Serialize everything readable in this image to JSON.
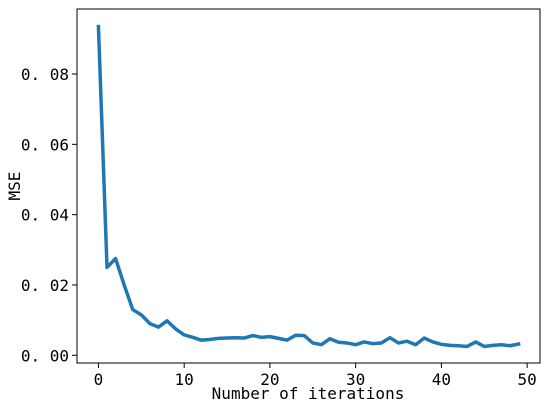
{
  "chart_data": {
    "type": "line",
    "xlabel": "Number of iterations",
    "ylabel": "MSE",
    "xlim": [
      -2.5,
      51.5
    ],
    "ylim": [
      -0.0022,
      0.0985
    ],
    "xticks": [
      0,
      10,
      20,
      30,
      40,
      50
    ],
    "xtick_labels": [
      "0",
      "10",
      "20",
      "30",
      "40",
      "50"
    ],
    "yticks": [
      0.0,
      0.02,
      0.04,
      0.06,
      0.08
    ],
    "ytick_labels": [
      "0. 00",
      "0. 02",
      "0. 04",
      "0. 06",
      "0. 08"
    ],
    "grid": false,
    "series": [
      {
        "color": "#1f77b4",
        "x": [
          0,
          1,
          2,
          3,
          4,
          5,
          6,
          7,
          8,
          9,
          10,
          11,
          12,
          13,
          14,
          15,
          16,
          17,
          18,
          19,
          20,
          21,
          22,
          23,
          24,
          25,
          26,
          27,
          28,
          29,
          30,
          31,
          32,
          33,
          34,
          35,
          36,
          37,
          38,
          39,
          40,
          41,
          42,
          43,
          44,
          45,
          46,
          47,
          48,
          49
        ],
        "y": [
          0.0935,
          0.025,
          0.0275,
          0.02,
          0.013,
          0.0115,
          0.009,
          0.008,
          0.0098,
          0.0075,
          0.0058,
          0.0051,
          0.0043,
          0.0045,
          0.0048,
          0.0049,
          0.005,
          0.0049,
          0.0056,
          0.0051,
          0.0053,
          0.0048,
          0.0043,
          0.0057,
          0.0056,
          0.0035,
          0.003,
          0.0047,
          0.0037,
          0.0035,
          0.003,
          0.0038,
          0.0033,
          0.0035,
          0.005,
          0.0035,
          0.004,
          0.003,
          0.0049,
          0.0038,
          0.0031,
          0.0028,
          0.0027,
          0.0025,
          0.0038,
          0.0025,
          0.0028,
          0.003,
          0.0027,
          0.0032
        ]
      }
    ]
  }
}
